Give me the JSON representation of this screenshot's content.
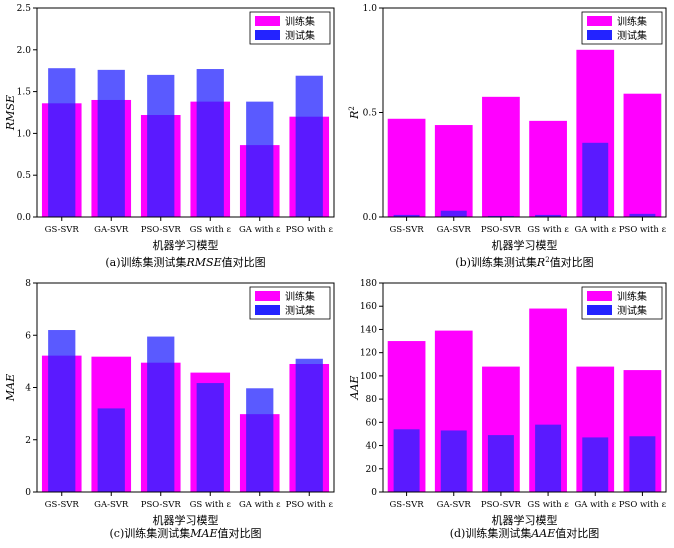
{
  "colors": {
    "train": "#ff00ff",
    "test": "#2323ff",
    "test_opacity": 0.75,
    "axis": "#000000"
  },
  "chart_data": [
    {
      "type": "bar",
      "id": "a",
      "categories": [
        "GS-SVR",
        "GA-SVR",
        "PSO-SVR",
        "GS with ε",
        "GA with ε",
        "PSO with ε"
      ],
      "series": [
        {
          "name": "训练集",
          "values": [
            1.36,
            1.4,
            1.22,
            1.38,
            0.86,
            1.2
          ]
        },
        {
          "name": "测试集",
          "values": [
            1.78,
            1.76,
            1.7,
            1.77,
            1.38,
            1.69
          ]
        }
      ],
      "ylim": [
        0,
        2.5
      ],
      "yticks": [
        "0.0",
        "0.5",
        "1.0",
        "1.5",
        "2.0",
        "2.5"
      ],
      "xlabel": "机器学习模型",
      "ylabel": "RMSE",
      "caption_prefix": "(a)训练集测试集",
      "caption_metric": "RMSE",
      "caption_suffix": "值对比图",
      "legend": "top-right"
    },
    {
      "type": "bar",
      "id": "b",
      "categories": [
        "GS-SVR",
        "GA-SVR",
        "PSO-SVR",
        "GS with ε",
        "GA with ε",
        "PSO with ε"
      ],
      "series": [
        {
          "name": "训练集",
          "values": [
            0.47,
            0.44,
            0.575,
            0.46,
            0.8,
            0.59
          ]
        },
        {
          "name": "测试集",
          "values": [
            0.01,
            0.03,
            0.005,
            0.01,
            0.355,
            0.015
          ]
        }
      ],
      "ylim": [
        0,
        1.0
      ],
      "yticks": [
        "0.0",
        "0.5",
        "1.0"
      ],
      "xlabel": "机器学习模型",
      "ylabel": "R",
      "ylabel_sup": "2",
      "caption_prefix": "(b)训练集测试集",
      "caption_metric": "R",
      "caption_sup": "2",
      "caption_suffix": "值对比图",
      "legend": "top-right"
    },
    {
      "type": "bar",
      "id": "c",
      "categories": [
        "GS-SVR",
        "GA-SVR",
        "PSO-SVR",
        "GS with ε",
        "GA with ε",
        "PSO with ε"
      ],
      "series": [
        {
          "name": "训练集",
          "values": [
            5.22,
            5.18,
            4.95,
            4.57,
            2.98,
            4.9
          ]
        },
        {
          "name": "测试集",
          "values": [
            6.2,
            3.2,
            5.95,
            4.17,
            3.97,
            5.1
          ]
        }
      ],
      "ylim": [
        0,
        8
      ],
      "yticks": [
        "0",
        "2",
        "4",
        "6",
        "8"
      ],
      "xlabel": "机器学习模型",
      "ylabel": "MAE",
      "caption_prefix": "(c)训练集测试集",
      "caption_metric": "MAE",
      "caption_suffix": "值对比图",
      "legend": "top-right"
    },
    {
      "type": "bar",
      "id": "d",
      "categories": [
        "GS-SVR",
        "GA-SVR",
        "PSO-SVR",
        "GS with ε",
        "GA with ε",
        "PSO with ε"
      ],
      "series": [
        {
          "name": "训练集",
          "values": [
            130,
            139,
            108,
            158,
            108,
            105
          ]
        },
        {
          "name": "测试集",
          "values": [
            54,
            53,
            49,
            58,
            47,
            48
          ]
        }
      ],
      "ylim": [
        0,
        180
      ],
      "yticks": [
        "0",
        "20",
        "40",
        "60",
        "80",
        "100",
        "120",
        "140",
        "160",
        "180"
      ],
      "xlabel": "机器学习模型",
      "ylabel": "AAE",
      "caption_prefix": "(d)训练集测试集",
      "caption_metric": "AAE",
      "caption_suffix": "值对比图",
      "legend": "top-right"
    }
  ]
}
